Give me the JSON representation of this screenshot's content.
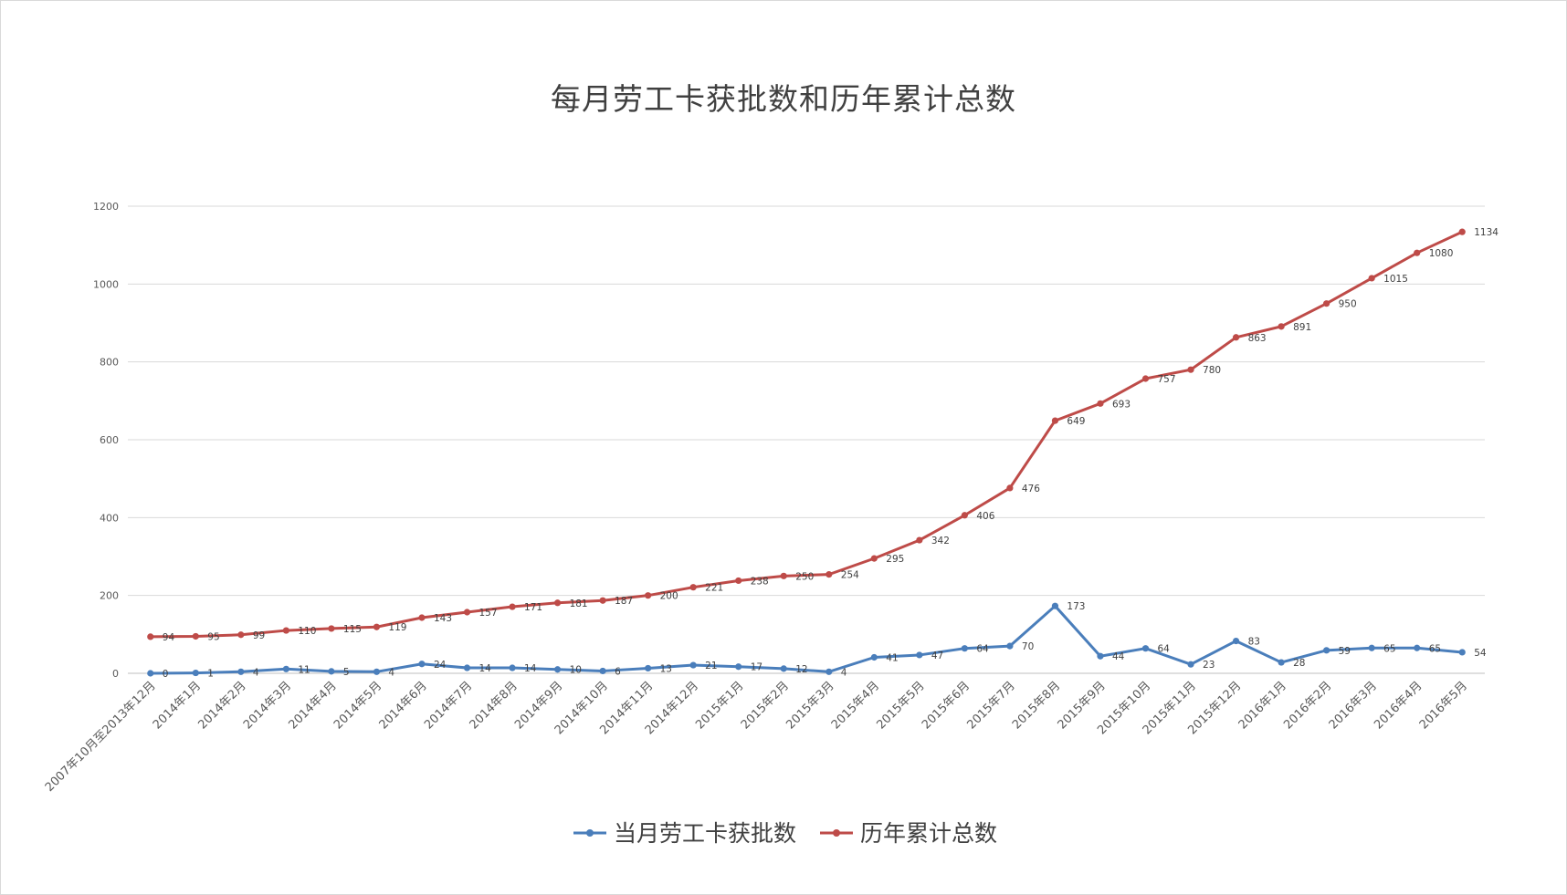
{
  "chart_data": {
    "type": "line",
    "title": "每月劳工卡获批数和历年累计总数",
    "xlabel": "",
    "ylabel": "",
    "ylim": [
      0,
      1200
    ],
    "yticks": [
      0,
      200,
      400,
      600,
      800,
      1000,
      1200
    ],
    "grid": true,
    "legend_position": "bottom",
    "categories": [
      "2007年10月至2013年12月",
      "2014年1月",
      "2014年2月",
      "2014年3月",
      "2014年4月",
      "2014年5月",
      "2014年6月",
      "2014年7月",
      "2014年8月",
      "2014年9月",
      "2014年10月",
      "2014年11月",
      "2014年12月",
      "2015年1月",
      "2015年2月",
      "2015年3月",
      "2015年4月",
      "2015年5月",
      "2015年6月",
      "2015年7月",
      "2015年8月",
      "2015年9月",
      "2015年10月",
      "2015年11月",
      "2015年12月",
      "2016年1月",
      "2016年2月",
      "2016年3月",
      "2016年4月",
      "2016年5月"
    ],
    "series": [
      {
        "name": "当月劳工卡获批数",
        "color": "#4a7ebb",
        "values": [
          0,
          1,
          4,
          11,
          5,
          4,
          24,
          14,
          14,
          10,
          6,
          13,
          21,
          17,
          12,
          4,
          41,
          47,
          64,
          70,
          173,
          44,
          64,
          23,
          83,
          28,
          59,
          65,
          65,
          54
        ]
      },
      {
        "name": "历年累计总数",
        "color": "#be4b48",
        "values": [
          94,
          95,
          99,
          110,
          115,
          119,
          143,
          157,
          171,
          181,
          187,
          200,
          221,
          238,
          250,
          254,
          295,
          342,
          406,
          476,
          649,
          693,
          757,
          780,
          863,
          891,
          950,
          1015,
          1080,
          1134
        ]
      }
    ]
  }
}
